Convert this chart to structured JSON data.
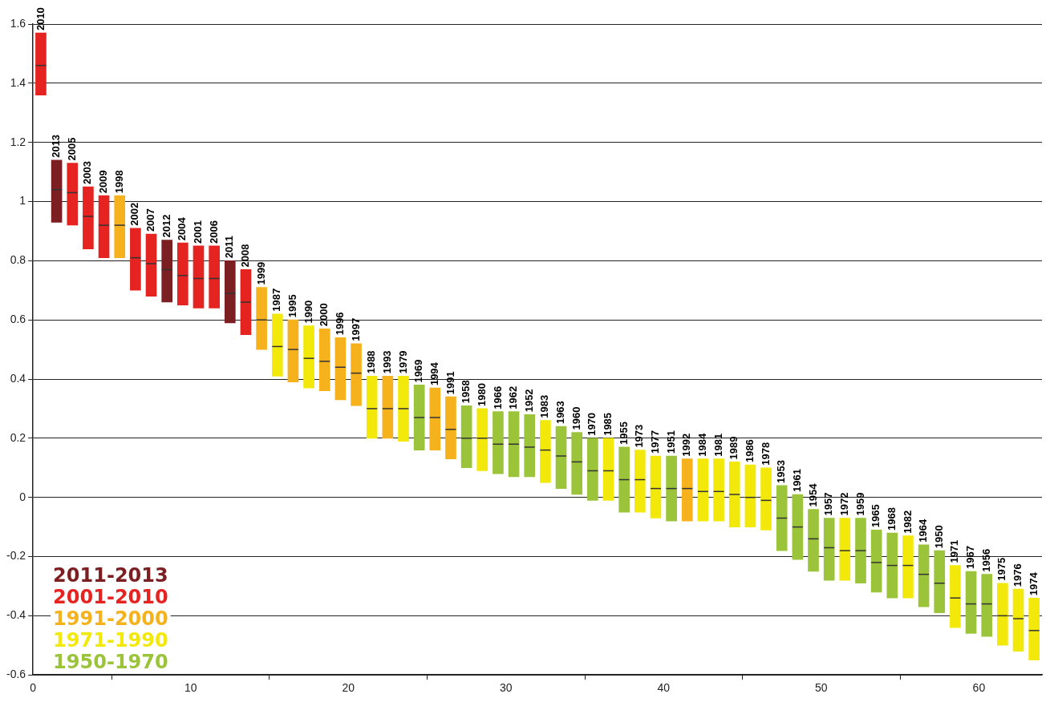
{
  "chart_data": {
    "type": "box",
    "xlim": [
      0,
      64
    ],
    "xticks": [
      0,
      10,
      20,
      30,
      40,
      50,
      60
    ],
    "ylim": [
      -0.6,
      1.6
    ],
    "yticks": [
      -0.6,
      -0.4,
      -0.2,
      0,
      0.2,
      0.4,
      0.6,
      0.8,
      1,
      1.2,
      1.4,
      1.6
    ],
    "grid": "y",
    "legend": "bottom left",
    "series": [
      {
        "name": "2011-2013",
        "color": "#7b1f22",
        "x": [
          1.5,
          8.5,
          12.5
        ],
        "boxes": [
          {
            "low": 0.93,
            "q1": 0.93,
            "median": 1.04,
            "q3": 1.14,
            "high": 1.14
          },
          {
            "low": 0.66,
            "q1": 0.66,
            "median": 0.77,
            "q3": 0.87,
            "high": 0.87
          },
          {
            "low": 0.59,
            "q1": 0.59,
            "median": 0.69,
            "q3": 0.8,
            "high": 0.8
          }
        ]
      },
      {
        "name": "2001-2010",
        "color": "#e52421",
        "x": [
          0.5,
          2.5,
          3.5,
          4.5,
          6.5,
          7.5,
          9.5,
          10.5,
          11.5,
          13.5
        ],
        "boxes": [
          {
            "low": 1.36,
            "q1": 1.36,
            "median": 1.46,
            "q3": 1.57,
            "high": 1.57
          },
          {
            "low": 0.92,
            "q1": 0.92,
            "median": 1.03,
            "q3": 1.13,
            "high": 1.13
          },
          {
            "low": 0.84,
            "q1": 0.84,
            "median": 0.95,
            "q3": 1.05,
            "high": 1.05
          },
          {
            "low": 0.81,
            "q1": 0.81,
            "median": 0.92,
            "q3": 1.02,
            "high": 1.02
          },
          {
            "low": 0.7,
            "q1": 0.7,
            "median": 0.81,
            "q3": 0.91,
            "high": 0.91
          },
          {
            "low": 0.68,
            "q1": 0.68,
            "median": 0.79,
            "q3": 0.89,
            "high": 0.89
          },
          {
            "low": 0.65,
            "q1": 0.65,
            "median": 0.75,
            "q3": 0.86,
            "high": 0.86
          },
          {
            "low": 0.64,
            "q1": 0.64,
            "median": 0.74,
            "q3": 0.85,
            "high": 0.85
          },
          {
            "low": 0.64,
            "q1": 0.64,
            "median": 0.74,
            "q3": 0.85,
            "high": 0.85
          },
          {
            "low": 0.55,
            "q1": 0.55,
            "median": 0.66,
            "q3": 0.77,
            "high": 0.77
          }
        ]
      },
      {
        "name": "1991-2000",
        "color": "#f5b21c",
        "x": [
          5.5,
          14.5,
          16.5,
          18.5,
          19.5,
          20.5,
          22.5,
          25.5,
          26.5,
          41.5
        ],
        "boxes": [
          {
            "low": 0.81,
            "q1": 0.81,
            "median": 0.92,
            "q3": 1.02,
            "high": 1.02
          },
          {
            "low": 0.5,
            "q1": 0.5,
            "median": 0.6,
            "q3": 0.71,
            "high": 0.71
          },
          {
            "low": 0.39,
            "q1": 0.39,
            "median": 0.5,
            "q3": 0.6,
            "high": 0.6
          },
          {
            "low": 0.36,
            "q1": 0.36,
            "median": 0.46,
            "q3": 0.57,
            "high": 0.57
          },
          {
            "low": 0.33,
            "q1": 0.33,
            "median": 0.44,
            "q3": 0.54,
            "high": 0.54
          },
          {
            "low": 0.31,
            "q1": 0.31,
            "median": 0.42,
            "q3": 0.52,
            "high": 0.52
          },
          {
            "low": 0.2,
            "q1": 0.2,
            "median": 0.3,
            "q3": 0.41,
            "high": 0.41
          },
          {
            "low": 0.16,
            "q1": 0.16,
            "median": 0.27,
            "q3": 0.37,
            "high": 0.37
          },
          {
            "low": 0.13,
            "q1": 0.13,
            "median": 0.23,
            "q3": 0.34,
            "high": 0.34
          },
          {
            "low": -0.08,
            "q1": -0.08,
            "median": 0.03,
            "q3": 0.13,
            "high": 0.13
          }
        ]
      },
      {
        "name": "1971-1990",
        "color": "#f2e90a",
        "x": [
          15.5,
          17.5,
          21.5,
          23.5,
          28.5,
          32.5,
          36.5,
          38.5,
          39.5,
          42.5,
          43.5,
          44.5,
          45.5,
          46.5,
          51.5,
          55.5,
          58.5,
          61.5,
          62.5,
          63.5
        ],
        "boxes": [
          {
            "low": 0.41,
            "q1": 0.41,
            "median": 0.51,
            "q3": 0.62,
            "high": 0.62
          },
          {
            "low": 0.37,
            "q1": 0.37,
            "median": 0.47,
            "q3": 0.58,
            "high": 0.58
          },
          {
            "low": 0.2,
            "q1": 0.2,
            "median": 0.3,
            "q3": 0.41,
            "high": 0.41
          },
          {
            "low": 0.19,
            "q1": 0.19,
            "median": 0.3,
            "q3": 0.41,
            "high": 0.41
          },
          {
            "low": 0.09,
            "q1": 0.09,
            "median": 0.2,
            "q3": 0.3,
            "high": 0.3
          },
          {
            "low": 0.05,
            "q1": 0.05,
            "median": 0.16,
            "q3": 0.26,
            "high": 0.26
          },
          {
            "low": -0.01,
            "q1": -0.01,
            "median": 0.09,
            "q3": 0.2,
            "high": 0.2
          },
          {
            "low": -0.05,
            "q1": -0.05,
            "median": 0.06,
            "q3": 0.16,
            "high": 0.16
          },
          {
            "low": -0.07,
            "q1": -0.07,
            "median": 0.03,
            "q3": 0.14,
            "high": 0.14
          },
          {
            "low": -0.08,
            "q1": -0.08,
            "median": 0.02,
            "q3": 0.13,
            "high": 0.13
          },
          {
            "low": -0.08,
            "q1": -0.08,
            "median": 0.02,
            "q3": 0.13,
            "high": 0.13
          },
          {
            "low": -0.1,
            "q1": -0.1,
            "median": 0.01,
            "q3": 0.12,
            "high": 0.12
          },
          {
            "low": -0.1,
            "q1": -0.1,
            "median": 0,
            "q3": 0.11,
            "high": 0.11
          },
          {
            "low": -0.11,
            "q1": -0.11,
            "median": -0.01,
            "q3": 0.1,
            "high": 0.1
          },
          {
            "low": -0.28,
            "q1": -0.28,
            "median": -0.18,
            "q3": -0.07,
            "high": -0.07
          },
          {
            "low": -0.34,
            "q1": -0.34,
            "median": -0.23,
            "q3": -0.13,
            "high": -0.13
          },
          {
            "low": -0.44,
            "q1": -0.44,
            "median": -0.34,
            "q3": -0.23,
            "high": -0.23
          },
          {
            "low": -0.5,
            "q1": -0.5,
            "median": -0.4,
            "q3": -0.29,
            "high": -0.29
          },
          {
            "low": -0.52,
            "q1": -0.52,
            "median": -0.41,
            "q3": -0.31,
            "high": -0.31
          },
          {
            "low": -0.55,
            "q1": -0.55,
            "median": -0.45,
            "q3": -0.34,
            "high": -0.34
          }
        ]
      },
      {
        "name": "1950-1970",
        "color": "#9bc43a",
        "x": [
          24.5,
          27.5,
          29.5,
          30.5,
          31.5,
          33.5,
          34.5,
          35.5,
          37.5,
          40.5,
          47.5,
          48.5,
          49.5,
          50.5,
          52.5,
          53.5,
          54.5,
          56.5,
          57.5,
          59.5,
          60.5
        ],
        "boxes": [
          {
            "low": 0.16,
            "q1": 0.16,
            "median": 0.27,
            "q3": 0.38,
            "high": 0.38
          },
          {
            "low": 0.1,
            "q1": 0.1,
            "median": 0.2,
            "q3": 0.31,
            "high": 0.31
          },
          {
            "low": 0.08,
            "q1": 0.08,
            "median": 0.18,
            "q3": 0.29,
            "high": 0.29
          },
          {
            "low": 0.07,
            "q1": 0.07,
            "median": 0.18,
            "q3": 0.29,
            "high": 0.29
          },
          {
            "low": 0.07,
            "q1": 0.07,
            "median": 0.17,
            "q3": 0.28,
            "high": 0.28
          },
          {
            "low": 0.03,
            "q1": 0.03,
            "median": 0.14,
            "q3": 0.24,
            "high": 0.24
          },
          {
            "low": 0.01,
            "q1": 0.01,
            "median": 0.12,
            "q3": 0.22,
            "high": 0.22
          },
          {
            "low": -0.01,
            "q1": -0.01,
            "median": 0.09,
            "q3": 0.2,
            "high": 0.2
          },
          {
            "low": -0.05,
            "q1": -0.05,
            "median": 0.06,
            "q3": 0.17,
            "high": 0.17
          },
          {
            "low": -0.08,
            "q1": -0.08,
            "median": 0.03,
            "q3": 0.14,
            "high": 0.14
          },
          {
            "low": -0.18,
            "q1": -0.18,
            "median": -0.07,
            "q3": 0.04,
            "high": 0.04
          },
          {
            "low": -0.21,
            "q1": -0.21,
            "median": -0.1,
            "q3": 0.01,
            "high": 0.01
          },
          {
            "low": -0.25,
            "q1": -0.25,
            "median": -0.14,
            "q3": -0.04,
            "high": -0.04
          },
          {
            "low": -0.28,
            "q1": -0.28,
            "median": -0.17,
            "q3": -0.07,
            "high": -0.07
          },
          {
            "low": -0.29,
            "q1": -0.29,
            "median": -0.18,
            "q3": -0.07,
            "high": -0.07
          },
          {
            "low": -0.32,
            "q1": -0.32,
            "median": -0.22,
            "q3": -0.11,
            "high": -0.11
          },
          {
            "low": -0.34,
            "q1": -0.34,
            "median": -0.23,
            "q3": -0.12,
            "high": -0.12
          },
          {
            "low": -0.37,
            "q1": -0.37,
            "median": -0.26,
            "q3": -0.16,
            "high": -0.16
          },
          {
            "low": -0.39,
            "q1": -0.39,
            "median": -0.29,
            "q3": -0.18,
            "high": -0.18
          },
          {
            "low": -0.46,
            "q1": -0.46,
            "median": -0.36,
            "q3": -0.25,
            "high": -0.25
          },
          {
            "low": -0.47,
            "q1": -0.47,
            "median": -0.36,
            "q3": -0.26,
            "high": -0.26
          }
        ]
      }
    ],
    "annotations": [
      {
        "text": "2010",
        "x": 0.5,
        "y": 1.57
      },
      {
        "text": "2013",
        "x": 1.5,
        "y": 1.14
      },
      {
        "text": "2005",
        "x": 2.5,
        "y": 1.13
      },
      {
        "text": "2003",
        "x": 3.5,
        "y": 1.05
      },
      {
        "text": "2009",
        "x": 4.5,
        "y": 1.02
      },
      {
        "text": "1998",
        "x": 5.5,
        "y": 1.02
      },
      {
        "text": "2002",
        "x": 6.5,
        "y": 0.91
      },
      {
        "text": "2007",
        "x": 7.5,
        "y": 0.89
      },
      {
        "text": "2012",
        "x": 8.5,
        "y": 0.87
      },
      {
        "text": "2004",
        "x": 9.5,
        "y": 0.86
      },
      {
        "text": "2001",
        "x": 10.5,
        "y": 0.85
      },
      {
        "text": "2006",
        "x": 11.5,
        "y": 0.85
      },
      {
        "text": "2011",
        "x": 12.5,
        "y": 0.8
      },
      {
        "text": "2008",
        "x": 13.5,
        "y": 0.77
      },
      {
        "text": "1999",
        "x": 14.5,
        "y": 0.71
      },
      {
        "text": "1987",
        "x": 15.5,
        "y": 0.62
      },
      {
        "text": "1995",
        "x": 16.5,
        "y": 0.6
      },
      {
        "text": "1990",
        "x": 17.5,
        "y": 0.58
      },
      {
        "text": "2000",
        "x": 18.5,
        "y": 0.57
      },
      {
        "text": "1996",
        "x": 19.5,
        "y": 0.54
      },
      {
        "text": "1997",
        "x": 20.5,
        "y": 0.52
      },
      {
        "text": "1988",
        "x": 21.5,
        "y": 0.41
      },
      {
        "text": "1993",
        "x": 22.5,
        "y": 0.41
      },
      {
        "text": "1979",
        "x": 23.5,
        "y": 0.41
      },
      {
        "text": "1969",
        "x": 24.5,
        "y": 0.38
      },
      {
        "text": "1994",
        "x": 25.5,
        "y": 0.37
      },
      {
        "text": "1991",
        "x": 26.5,
        "y": 0.34
      },
      {
        "text": "1958",
        "x": 27.5,
        "y": 0.31
      },
      {
        "text": "1980",
        "x": 28.5,
        "y": 0.3
      },
      {
        "text": "1966",
        "x": 29.5,
        "y": 0.29
      },
      {
        "text": "1962",
        "x": 30.5,
        "y": 0.29
      },
      {
        "text": "1952",
        "x": 31.5,
        "y": 0.28
      },
      {
        "text": "1983",
        "x": 32.5,
        "y": 0.26
      },
      {
        "text": "1963",
        "x": 33.5,
        "y": 0.24
      },
      {
        "text": "1960",
        "x": 34.5,
        "y": 0.22
      },
      {
        "text": "1970",
        "x": 35.5,
        "y": 0.2
      },
      {
        "text": "1985",
        "x": 36.5,
        "y": 0.2
      },
      {
        "text": "1955",
        "x": 37.5,
        "y": 0.17
      },
      {
        "text": "1973",
        "x": 38.5,
        "y": 0.16
      },
      {
        "text": "1977",
        "x": 39.5,
        "y": 0.14
      },
      {
        "text": "1951",
        "x": 40.5,
        "y": 0.14
      },
      {
        "text": "1992",
        "x": 41.5,
        "y": 0.13
      },
      {
        "text": "1984",
        "x": 42.5,
        "y": 0.13
      },
      {
        "text": "1981",
        "x": 43.5,
        "y": 0.13
      },
      {
        "text": "1989",
        "x": 44.5,
        "y": 0.12
      },
      {
        "text": "1986",
        "x": 45.5,
        "y": 0.11
      },
      {
        "text": "1978",
        "x": 46.5,
        "y": 0.1
      },
      {
        "text": "1953",
        "x": 47.5,
        "y": 0.04
      },
      {
        "text": "1961",
        "x": 48.5,
        "y": 0.01
      },
      {
        "text": "1954",
        "x": 49.5,
        "y": -0.04
      },
      {
        "text": "1957",
        "x": 50.5,
        "y": -0.07
      },
      {
        "text": "1972",
        "x": 51.5,
        "y": -0.07
      },
      {
        "text": "1959",
        "x": 52.5,
        "y": -0.07
      },
      {
        "text": "1965",
        "x": 53.5,
        "y": -0.11
      },
      {
        "text": "1968",
        "x": 54.5,
        "y": -0.12
      },
      {
        "text": "1982",
        "x": 55.5,
        "y": -0.13
      },
      {
        "text": "1964",
        "x": 56.5,
        "y": -0.16
      },
      {
        "text": "1950",
        "x": 57.5,
        "y": -0.18
      },
      {
        "text": "1971",
        "x": 58.5,
        "y": -0.23
      },
      {
        "text": "1967",
        "x": 59.5,
        "y": -0.25
      },
      {
        "text": "1956",
        "x": 60.5,
        "y": -0.26
      },
      {
        "text": "1975",
        "x": 61.5,
        "y": -0.29
      },
      {
        "text": "1976",
        "x": 62.5,
        "y": -0.31
      },
      {
        "text": "1974",
        "x": 63.5,
        "y": -0.34
      }
    ]
  }
}
